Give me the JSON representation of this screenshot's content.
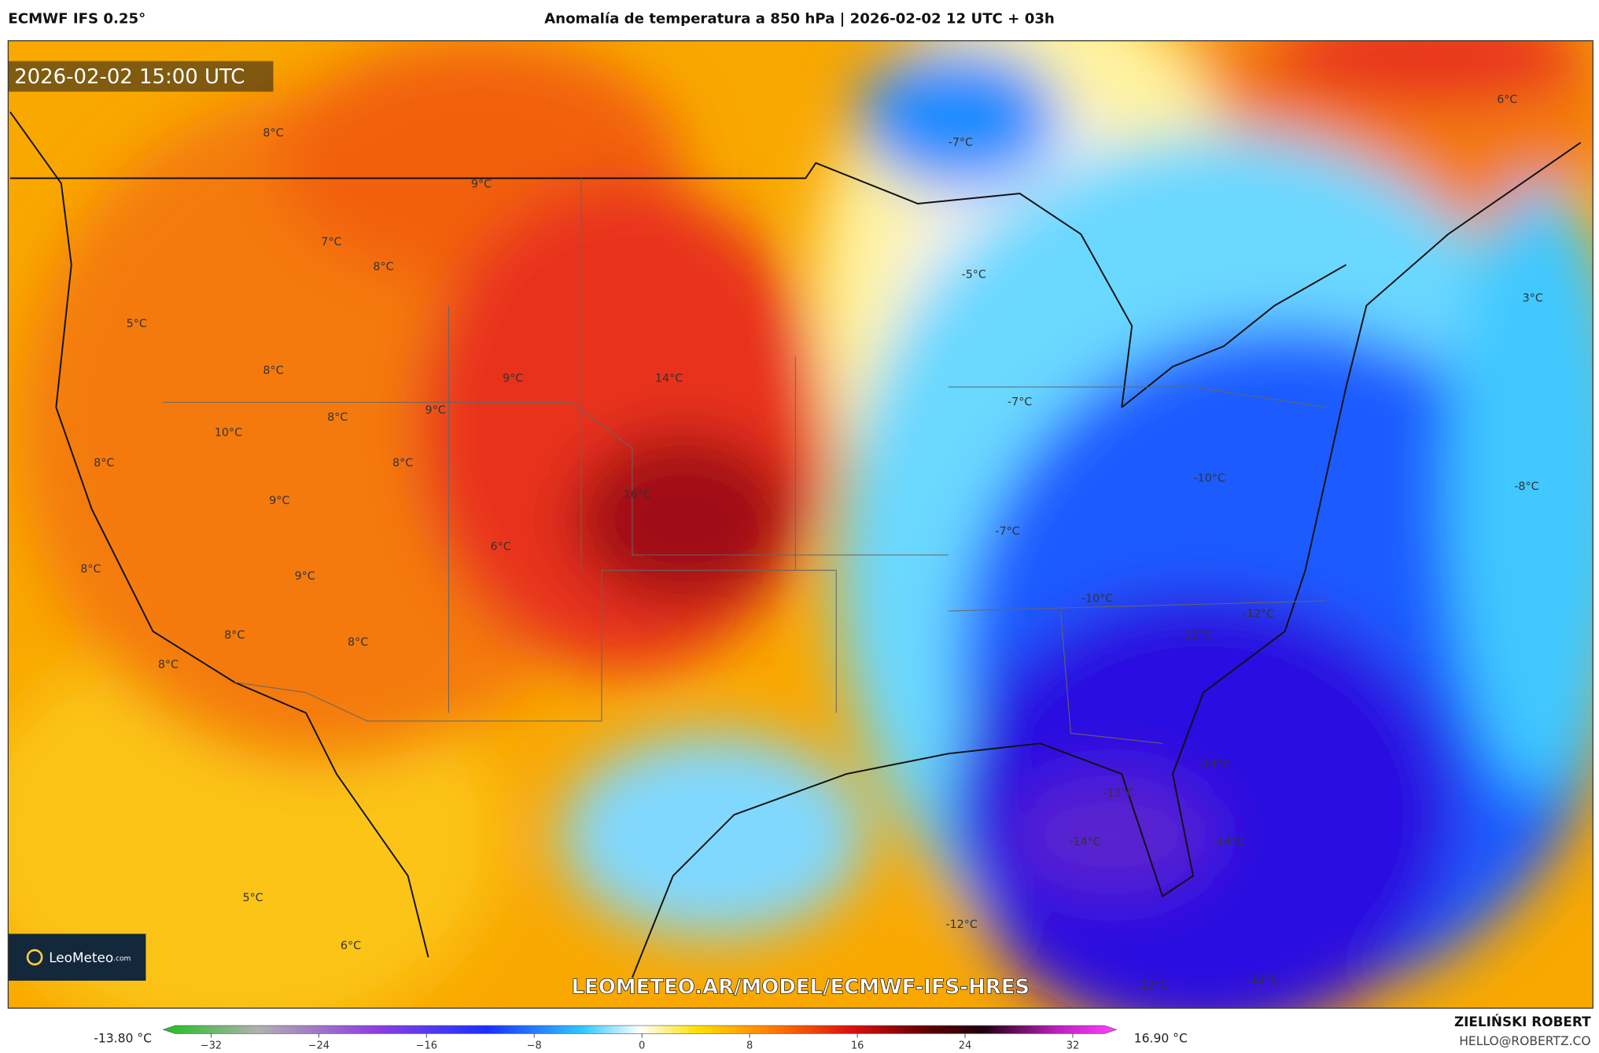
{
  "header": {
    "model": "ECMWF IFS 0.25°",
    "title": "Anomalía de temperatura a 850 hPa | 2026-02-02 12 UTC + 03h"
  },
  "map": {
    "timestamp": "2026-02-02 15:00 UTC",
    "watermark": "LEOMETEO.AR/MODEL/ECMWF-IFS-HRES",
    "logo": {
      "name": "LeoMeteo",
      "suffix": ".com"
    },
    "labels": [
      "8°C",
      "9°C",
      "7°C",
      "8°C",
      "5°C",
      "8°C",
      "9°C",
      "14°C",
      "9°C",
      "8°C",
      "10°C",
      "8°C",
      "8°C",
      "16°C",
      "9°C",
      "6°C",
      "8°C",
      "9°C",
      "8°C",
      "8°C",
      "8°C",
      "5°C",
      "6°C",
      "-7°C",
      "-5°C",
      "-7°C",
      "-10°C",
      "-7°C",
      "-8°C",
      "-10°C",
      "-12°C",
      "-12°C",
      "-14°C",
      "-13°C",
      "-14°C",
      "-14°C",
      "-12°C",
      "-12°C",
      "-12°C",
      "6°C",
      "3°C"
    ]
  },
  "colorbar": {
    "min_label": "-13.80 °C",
    "max_label": "16.90 °C",
    "ticks": [
      {
        "value": -32,
        "label": "−32"
      },
      {
        "value": -24,
        "label": "−24"
      },
      {
        "value": -16,
        "label": "−16"
      },
      {
        "value": -8,
        "label": "−8"
      },
      0,
      8,
      16,
      24,
      32
    ]
  },
  "footer": {
    "author": "ZIELIŃSKI ROBERT",
    "contact": "HELLO@ROBERTZ.CO"
  }
}
